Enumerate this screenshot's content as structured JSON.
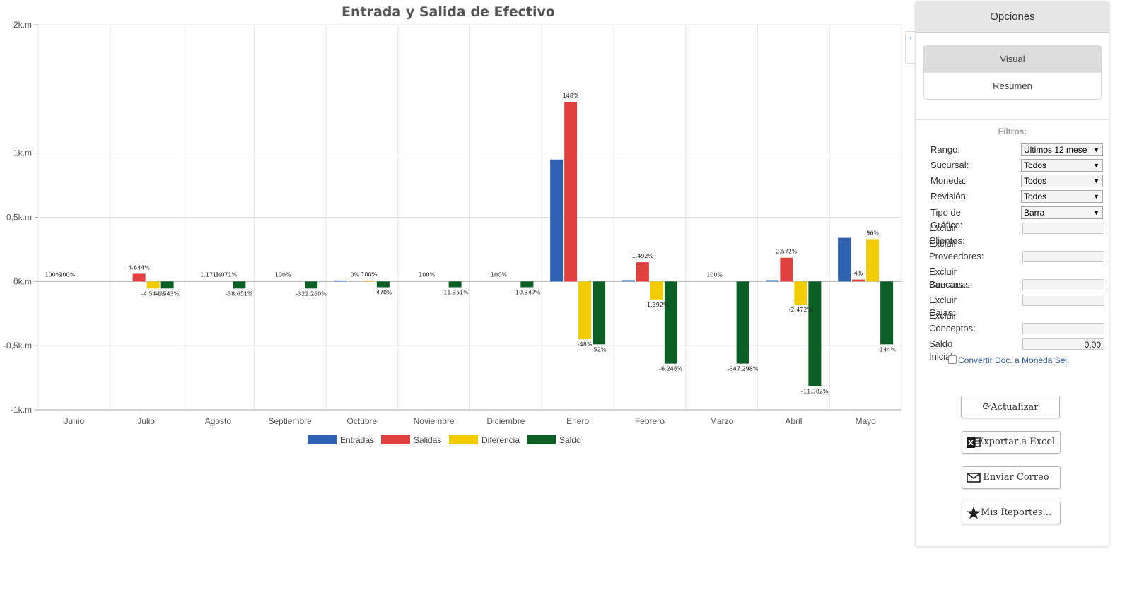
{
  "chart_data": {
    "type": "bar",
    "title": "Entrada y Salida de Efectivo",
    "xlabel": "",
    "ylabel": "",
    "ylim": [
      -1000,
      2000
    ],
    "yticks": [
      {
        "value": 2000,
        "label": "2k.m"
      },
      {
        "value": 1000,
        "label": "1k.m"
      },
      {
        "value": 500,
        "label": "0,5k.m"
      },
      {
        "value": 0,
        "label": "0k.m"
      },
      {
        "value": -500,
        "label": "-0,5k.m"
      },
      {
        "value": -1000,
        "label": "-1k.m"
      }
    ],
    "categories": [
      "Junio",
      "Julio",
      "Agosto",
      "Septiembre",
      "Octubre",
      "Noviembre",
      "Diciembre",
      "Enero",
      "Febrero",
      "Marzo",
      "Abril",
      "Mayo"
    ],
    "series": [
      {
        "name": "Entradas",
        "color": "#2f62b0",
        "values": [
          0,
          0,
          0,
          0,
          8,
          0,
          0,
          950,
          10,
          0,
          10,
          340
        ],
        "labels": [
          "100%",
          "",
          "",
          "",
          "",
          "",
          "",
          "",
          "",
          "",
          "",
          ""
        ]
      },
      {
        "name": "Salidas",
        "color": "#e04040",
        "values": [
          0,
          60,
          0,
          0,
          0,
          0,
          0,
          1400,
          150,
          0,
          185,
          15
        ],
        "labels": [
          "100%",
          "4.644%",
          "1.171%",
          "100%",
          "0%",
          "100%",
          "100%",
          "148%",
          "1.492%",
          "100%",
          "2.572%",
          "4%"
        ]
      },
      {
        "name": "Diferencia",
        "color": "#f0cc00",
        "values": [
          0,
          -55,
          0,
          0,
          8,
          0,
          0,
          -450,
          -140,
          0,
          -180,
          330
        ],
        "labels": [
          "",
          "-4.544%",
          "-1.071%",
          "",
          "100%",
          "",
          "",
          "-48%",
          "-1.392%",
          "",
          "-2.472%",
          "96%"
        ]
      },
      {
        "name": "Saldo",
        "color": "#0b5e24",
        "values": [
          0,
          -55,
          -55,
          -55,
          -45,
          -45,
          -45,
          -490,
          -640,
          -640,
          -815,
          -490
        ],
        "labels": [
          "",
          "-6.543%",
          "-38.651%",
          "-322.260%",
          "-470%",
          "-11.351%",
          "-10.347%",
          "-52%",
          "-6.246%",
          "-347.298%",
          "-11.382%",
          "-144%"
        ]
      }
    ],
    "legend_position": "bottom-center",
    "grid": true
  },
  "panel": {
    "header": "Opciones",
    "tabs": [
      {
        "label": "Visual",
        "active": true
      },
      {
        "label": "Resumen",
        "active": false
      }
    ],
    "filters_title": "Filtros:",
    "filters": {
      "rango": {
        "label": "Rango:",
        "value": "Últimos 12 mese"
      },
      "sucursal": {
        "label": "Sucursal:",
        "value": "Todos"
      },
      "moneda": {
        "label": "Moneda:",
        "value": "Todos"
      },
      "revision": {
        "label": "Revisión:",
        "value": "Todos"
      },
      "tipo_grafico": {
        "label": "Tipo de Gráfico:",
        "value": "Barra"
      },
      "excluir_clientes": {
        "label": "Excluir Clientes:",
        "value": ""
      },
      "excluir_proveedores": {
        "label1": "Excluir",
        "label2": "Proveedores:",
        "value": ""
      },
      "excluir_cuentas": {
        "label1": "Excluir Cuentas",
        "label2": "Bancarias:",
        "value": ""
      },
      "excluir_cajas": {
        "label": "Excluir Cajas:",
        "value": ""
      },
      "excluir_conceptos": {
        "label1": "Excluir",
        "label2": "Conceptos:",
        "value": ""
      },
      "saldo_inicial": {
        "label": "Saldo Inicial:",
        "value": "0,00"
      }
    },
    "convert_checkbox": {
      "label": "Convertir Doc. a Moneda Sel.",
      "checked": false
    },
    "buttons": {
      "actualizar": "Actualizar",
      "exportar": "Exportar a Excel",
      "correo": "Enviar Correo",
      "reportes": "Mis Reportes..."
    }
  }
}
